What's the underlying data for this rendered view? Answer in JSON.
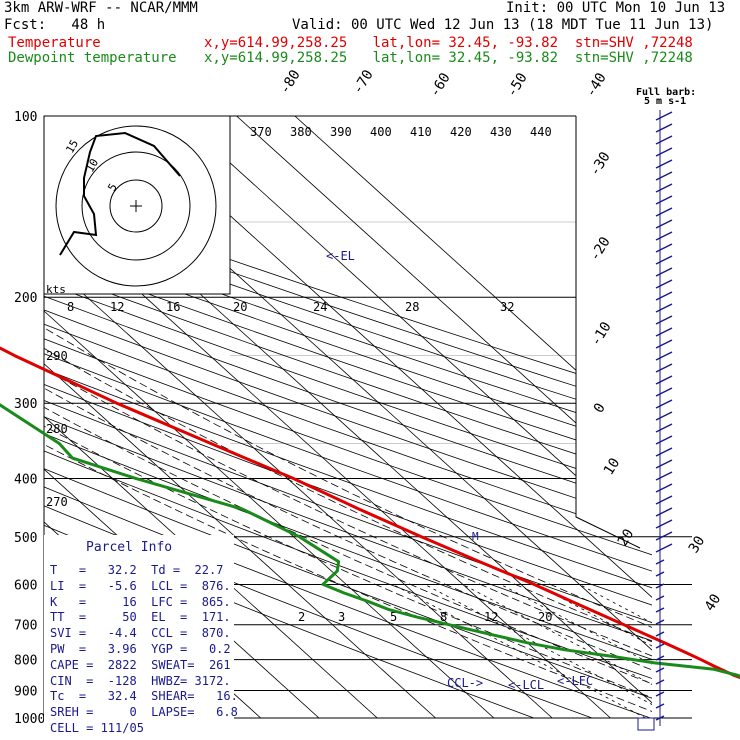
{
  "header": {
    "line1_left": "3km ARW-WRF -- NCAR/MMM",
    "line1_right": "Init: 00 UTC Mon 10 Jun 13",
    "line2_left": "Fcst:   48 h",
    "line2_right": "Valid: 00 UTC Wed 12 Jun 13 (18 MDT Tue 11 Jun 13)",
    "temp_label": "Temperature",
    "temp_info": "x,y=614.99,258.25   lat,lon= 32.45, -93.82  stn=SHV ,72248",
    "dew_label": "Dewpoint temperature",
    "dew_info": "x,y=614.99,258.25   lat,lon= 32.45, -93.82  stn=SHV ,72248"
  },
  "colors": {
    "temperature": "#e00000",
    "dewpoint": "#1a8a1a",
    "info": "#1a1a8c",
    "grid": "#000000"
  },
  "barb_label": "Full barb:\n5 m s-1",
  "chart_data": {
    "type": "line",
    "xlabel": "",
    "ylabel": "",
    "pressure_levels": [
      100,
      200,
      300,
      400,
      500,
      600,
      700,
      800,
      900,
      1000
    ],
    "isotherm_labels": [
      -80,
      -70,
      -60,
      -50,
      -40,
      -30,
      -20,
      -10,
      0,
      10,
      20,
      30,
      40
    ],
    "mixing_ratio_labels": [
      "2",
      "3",
      "5",
      "8",
      "12",
      "20"
    ],
    "theta_e_labels": [
      "370",
      "380",
      "390",
      "400",
      "410",
      "420",
      "430",
      "440"
    ],
    "lower_theta_labels": [
      "290",
      "280",
      "270"
    ],
    "series": [
      {
        "name": "Temperature",
        "color": "#e00000",
        "pressure": [
          1000,
          950,
          925,
          900,
          875,
          850,
          820,
          800,
          780,
          750,
          700,
          650,
          600,
          550,
          500,
          450,
          400,
          350,
          300,
          250,
          200,
          170,
          150,
          125,
          110,
          100
        ],
        "temp": [
          31.5,
          28.5,
          26.0,
          24.0,
          21.5,
          19.3,
          17.6,
          16.6,
          15.4,
          13.5,
          10.0,
          6.2,
          2.2,
          -2.8,
          -8.1,
          -13.5,
          -19.0,
          -26.5,
          -35.0,
          -43.5,
          -51.8,
          -55.8,
          -57.5,
          -61.5,
          -64.5,
          -67.0
        ]
      },
      {
        "name": "Dewpoint temperature",
        "color": "#1a8a1a",
        "pressure": [
          1000,
          950,
          925,
          900,
          850,
          830,
          810,
          790,
          770,
          750,
          720,
          700,
          680,
          660,
          640,
          620,
          600,
          570,
          550,
          500,
          450,
          400,
          370,
          350,
          300,
          250,
          200,
          170,
          150,
          125,
          100
        ],
        "temp": [
          22.2,
          22.0,
          21.5,
          20.5,
          20.0,
          17.0,
          8.0,
          2.0,
          -5.0,
          -10.0,
          -16.0,
          -20.0,
          -24.0,
          -27.5,
          -29.5,
          -32.0,
          -34.0,
          -29.0,
          -27.0,
          -29.0,
          -33.5,
          -46.0,
          -53.0,
          -52.5,
          -55.5,
          -63.0,
          -72.0,
          -84.0,
          -86.0,
          -87.0,
          -80.0
        ]
      }
    ],
    "annotations": [
      "<-EL",
      "CCL->",
      "<-LCL",
      "<-LFC",
      "M"
    ],
    "hodograph": {
      "ring_labels": [
        "5",
        "10",
        "15"
      ],
      "scale_label": "kts",
      "scale_ticks": [
        "8",
        "12",
        "16",
        "20",
        "24",
        "28",
        "32"
      ]
    }
  },
  "parcel_info": {
    "title": "Parcel Info",
    "rows": [
      "T   =   32.2  Td =  22.7",
      "LI  =   -5.6  LCL =  876.",
      "K   =     16  LFC =  865.",
      "TT  =     50  EL  =  171.",
      "SVI =   -4.4  CCL =  870.",
      "PW  =   3.96  YGP =   0.2",
      "CAPE =  2822  SWEAT=  261",
      "CIN  =  -128  HWBZ= 3172.",
      "Tc  =   32.4  SHEAR=   16.",
      "SREH =     0  LAPSE=   6.8",
      "CELL = 111/05"
    ]
  }
}
